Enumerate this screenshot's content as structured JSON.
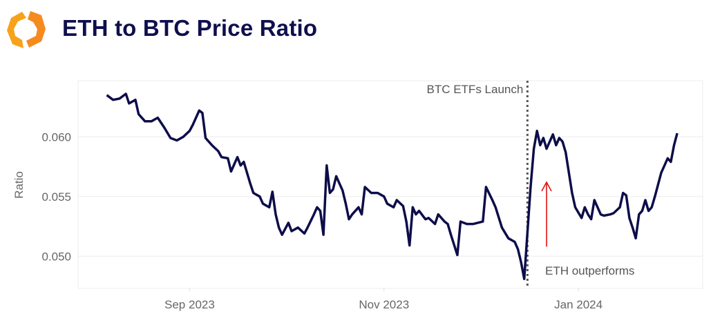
{
  "header": {
    "title": "ETH to BTC Price Ratio",
    "logo_icon": "orange-hexagon-brackets-logo",
    "logo_colors": [
      "#f7a21b",
      "#f26b1d"
    ]
  },
  "chart_data": {
    "type": "line",
    "title": "ETH to BTC Price Ratio",
    "xlabel": "",
    "ylabel": "Ratio",
    "xlim": [
      "2023-07-28",
      "2024-02-09"
    ],
    "ylim": [
      0.0473,
      0.0647
    ],
    "x_ticks": [
      {
        "date": "2023-09-01",
        "label": "Sep 2023"
      },
      {
        "date": "2023-11-01",
        "label": "Nov 2023"
      },
      {
        "date": "2024-01-01",
        "label": "Jan 2024"
      }
    ],
    "y_ticks": [
      {
        "value": 0.05,
        "label": "0.050"
      },
      {
        "value": 0.055,
        "label": "0.055"
      },
      {
        "value": 0.06,
        "label": "0.060"
      }
    ],
    "grid": true,
    "legend": "none",
    "line_color": "#0d0d4a",
    "series": [
      {
        "x": [
          "2023-08-06",
          "2023-08-08",
          "2023-08-10",
          "2023-08-12",
          "2023-08-13",
          "2023-08-15",
          "2023-08-16",
          "2023-08-18",
          "2023-08-20",
          "2023-08-22",
          "2023-08-24",
          "2023-08-26",
          "2023-08-28",
          "2023-08-30",
          "2023-09-01",
          "2023-09-02",
          "2023-09-04",
          "2023-09-05",
          "2023-09-06",
          "2023-09-08",
          "2023-09-10",
          "2023-09-11",
          "2023-09-13",
          "2023-09-14",
          "2023-09-16",
          "2023-09-17",
          "2023-09-18",
          "2023-09-20",
          "2023-09-21",
          "2023-09-23",
          "2023-09-24",
          "2023-09-26",
          "2023-09-27",
          "2023-09-28",
          "2023-09-29",
          "2023-09-30",
          "2023-10-02",
          "2023-10-03",
          "2023-10-05",
          "2023-10-07",
          "2023-10-08",
          "2023-10-10",
          "2023-10-11",
          "2023-10-12",
          "2023-10-13",
          "2023-10-14",
          "2023-10-15",
          "2023-10-16",
          "2023-10-17",
          "2023-10-19",
          "2023-10-20",
          "2023-10-21",
          "2023-10-22",
          "2023-10-24",
          "2023-10-25",
          "2023-10-26",
          "2023-10-28",
          "2023-10-30",
          "2023-11-01",
          "2023-11-02",
          "2023-11-04",
          "2023-11-05",
          "2023-11-07",
          "2023-11-08",
          "2023-11-09",
          "2023-11-10",
          "2023-11-11",
          "2023-11-12",
          "2023-11-14",
          "2023-11-15",
          "2023-11-17",
          "2023-11-18",
          "2023-11-20",
          "2023-11-21",
          "2023-11-22",
          "2023-11-24",
          "2023-11-25",
          "2023-11-27",
          "2023-11-29",
          "2023-12-02",
          "2023-12-03",
          "2023-12-05",
          "2023-12-06",
          "2023-12-08",
          "2023-12-10",
          "2023-12-12",
          "2023-12-13",
          "2023-12-14",
          "2023-12-15",
          "2023-12-17",
          "2023-12-18",
          "2023-12-19",
          "2023-12-20",
          "2023-12-21",
          "2023-12-22",
          "2023-12-24",
          "2023-12-25",
          "2023-12-26",
          "2023-12-27",
          "2023-12-28",
          "2023-12-29",
          "2023-12-30",
          "2023-12-31",
          "2024-01-02",
          "2024-01-03",
          "2024-01-04",
          "2024-01-05",
          "2024-01-06",
          "2024-01-08",
          "2024-01-09",
          "2024-01-11",
          "2024-01-12",
          "2024-01-14",
          "2024-01-15",
          "2024-01-16",
          "2024-01-17",
          "2024-01-18",
          "2024-01-19",
          "2024-01-20",
          "2024-01-21",
          "2024-01-22",
          "2024-01-23",
          "2024-01-24",
          "2024-01-25",
          "2024-01-27",
          "2024-01-28",
          "2024-01-29",
          "2024-01-30",
          "2024-01-31",
          "2024-02-01"
        ],
        "y": [
          0.0635,
          0.0631,
          0.0632,
          0.0636,
          0.0628,
          0.0631,
          0.0619,
          0.0613,
          0.0613,
          0.0616,
          0.0608,
          0.0599,
          0.0597,
          0.06,
          0.0605,
          0.061,
          0.0622,
          0.062,
          0.0599,
          0.0593,
          0.0588,
          0.0583,
          0.0582,
          0.0571,
          0.0583,
          0.0576,
          0.0579,
          0.0561,
          0.0553,
          0.055,
          0.0544,
          0.0541,
          0.0554,
          0.0535,
          0.0524,
          0.0518,
          0.0528,
          0.0521,
          0.0524,
          0.0519,
          0.0524,
          0.0535,
          0.0541,
          0.0538,
          0.0518,
          0.0576,
          0.0553,
          0.0556,
          0.0567,
          0.0555,
          0.0544,
          0.0531,
          0.0535,
          0.0541,
          0.0535,
          0.0558,
          0.0553,
          0.0553,
          0.055,
          0.0544,
          0.0541,
          0.0547,
          0.0542,
          0.0529,
          0.0509,
          0.0541,
          0.0535,
          0.0538,
          0.0531,
          0.0532,
          0.0527,
          0.0535,
          0.0529,
          0.0527,
          0.0518,
          0.0501,
          0.0529,
          0.0527,
          0.0527,
          0.0529,
          0.0558,
          0.0547,
          0.0541,
          0.0524,
          0.0515,
          0.0512,
          0.0506,
          0.0495,
          0.0481,
          0.0558,
          0.059,
          0.0605,
          0.0593,
          0.0599,
          0.059,
          0.0602,
          0.0593,
          0.0599,
          0.0596,
          0.0587,
          0.057,
          0.0553,
          0.0541,
          0.0532,
          0.0541,
          0.0535,
          0.0531,
          0.0547,
          0.0535,
          0.0534,
          0.0535,
          0.0536,
          0.0541,
          0.0553,
          0.0551,
          0.0532,
          0.0524,
          0.0515,
          0.0535,
          0.0538,
          0.0547,
          0.0538,
          0.0541,
          0.055,
          0.057,
          0.0576,
          0.0582,
          0.0579,
          0.0593,
          0.0603
        ]
      }
    ],
    "annotations": [
      {
        "type": "vline",
        "date": "2023-12-16",
        "style": "dotted",
        "color": "#555555",
        "label": "BTC ETFs Launch"
      },
      {
        "type": "arrow",
        "date": "2023-12-22",
        "from": 0.0508,
        "to": 0.0562,
        "color": "#e01010"
      },
      {
        "type": "text",
        "date": "2023-12-22",
        "value": 0.0488,
        "label": "ETH outperforms"
      }
    ]
  }
}
